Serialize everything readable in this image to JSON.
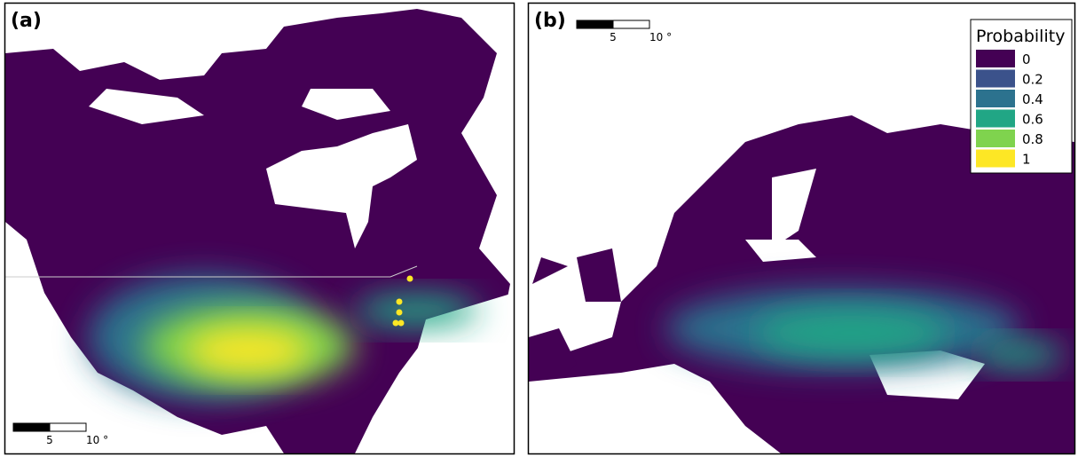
{
  "panels": [
    {
      "label": "(a)",
      "scale_bar": {
        "labels": [
          "5",
          "10 °"
        ]
      }
    },
    {
      "label": "(b)",
      "scale_bar": {
        "labels": [
          "5",
          "10 °"
        ]
      }
    }
  ],
  "legend": {
    "title": "Probability",
    "entries": [
      {
        "label": "0",
        "color": "#440154"
      },
      {
        "label": "0.2",
        "color": "#3b528b"
      },
      {
        "label": "0.4",
        "color": "#2c728e"
      },
      {
        "label": "0.6",
        "color": "#21a685"
      },
      {
        "label": "0.8",
        "color": "#7fd34e"
      },
      {
        "label": "1",
        "color": "#fde725"
      }
    ]
  }
}
